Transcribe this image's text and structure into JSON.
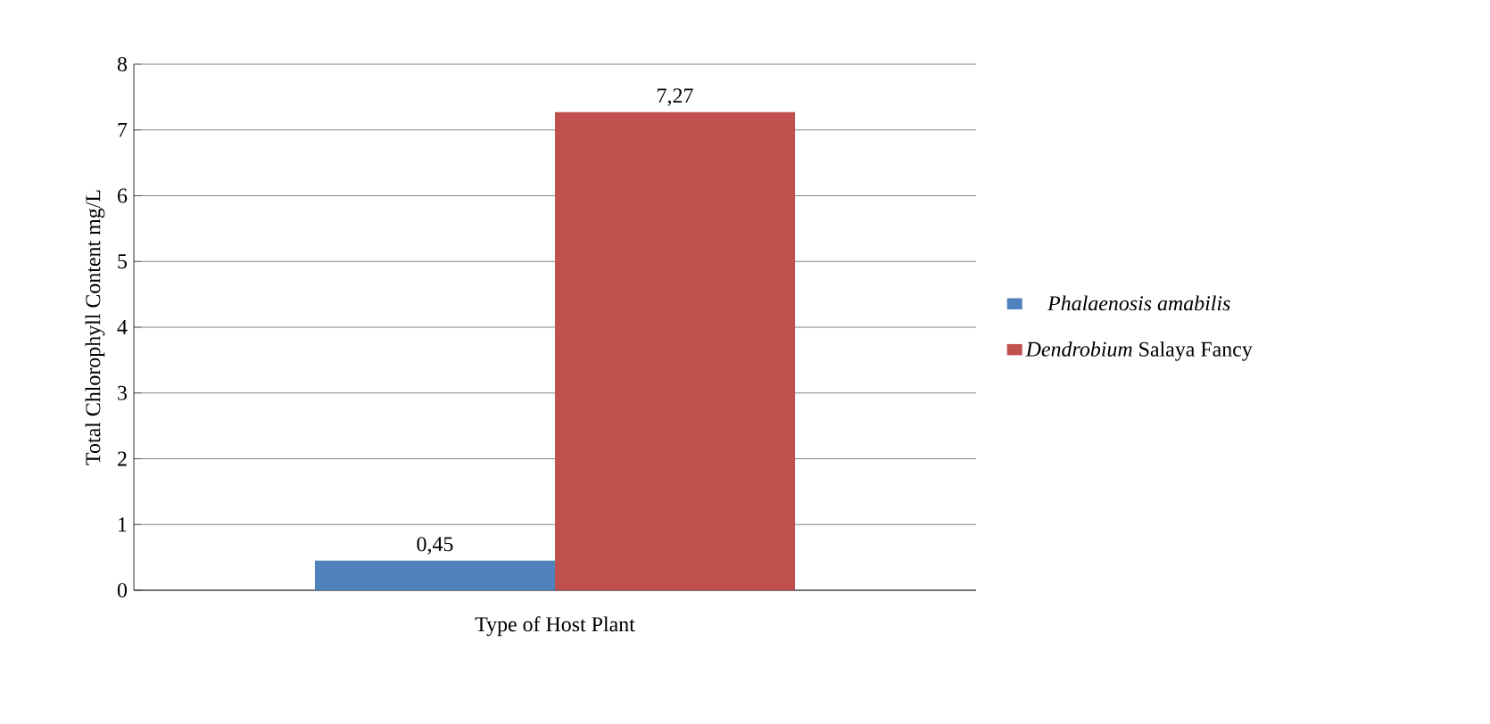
{
  "chart_data": {
    "type": "bar",
    "xlabel": "Type of Host Plant",
    "ylabel": "Total Chlorophyll Content mg/L",
    "categories": [
      null
    ],
    "series": [
      {
        "name": "Phalaenosis amabilis",
        "color": "#4f81bd",
        "values": [
          0.45
        ],
        "value_labels": [
          "0,45"
        ]
      },
      {
        "name": "*Dendrobium* Salaya Fancy",
        "color": "#c0504d",
        "values": [
          7.27
        ],
        "value_labels": [
          "7,27"
        ]
      }
    ],
    "ylim": [
      0,
      8
    ],
    "yticks": [
      0,
      1,
      2,
      3,
      4,
      5,
      6,
      7,
      8
    ],
    "grid": "y",
    "legend": "right"
  }
}
